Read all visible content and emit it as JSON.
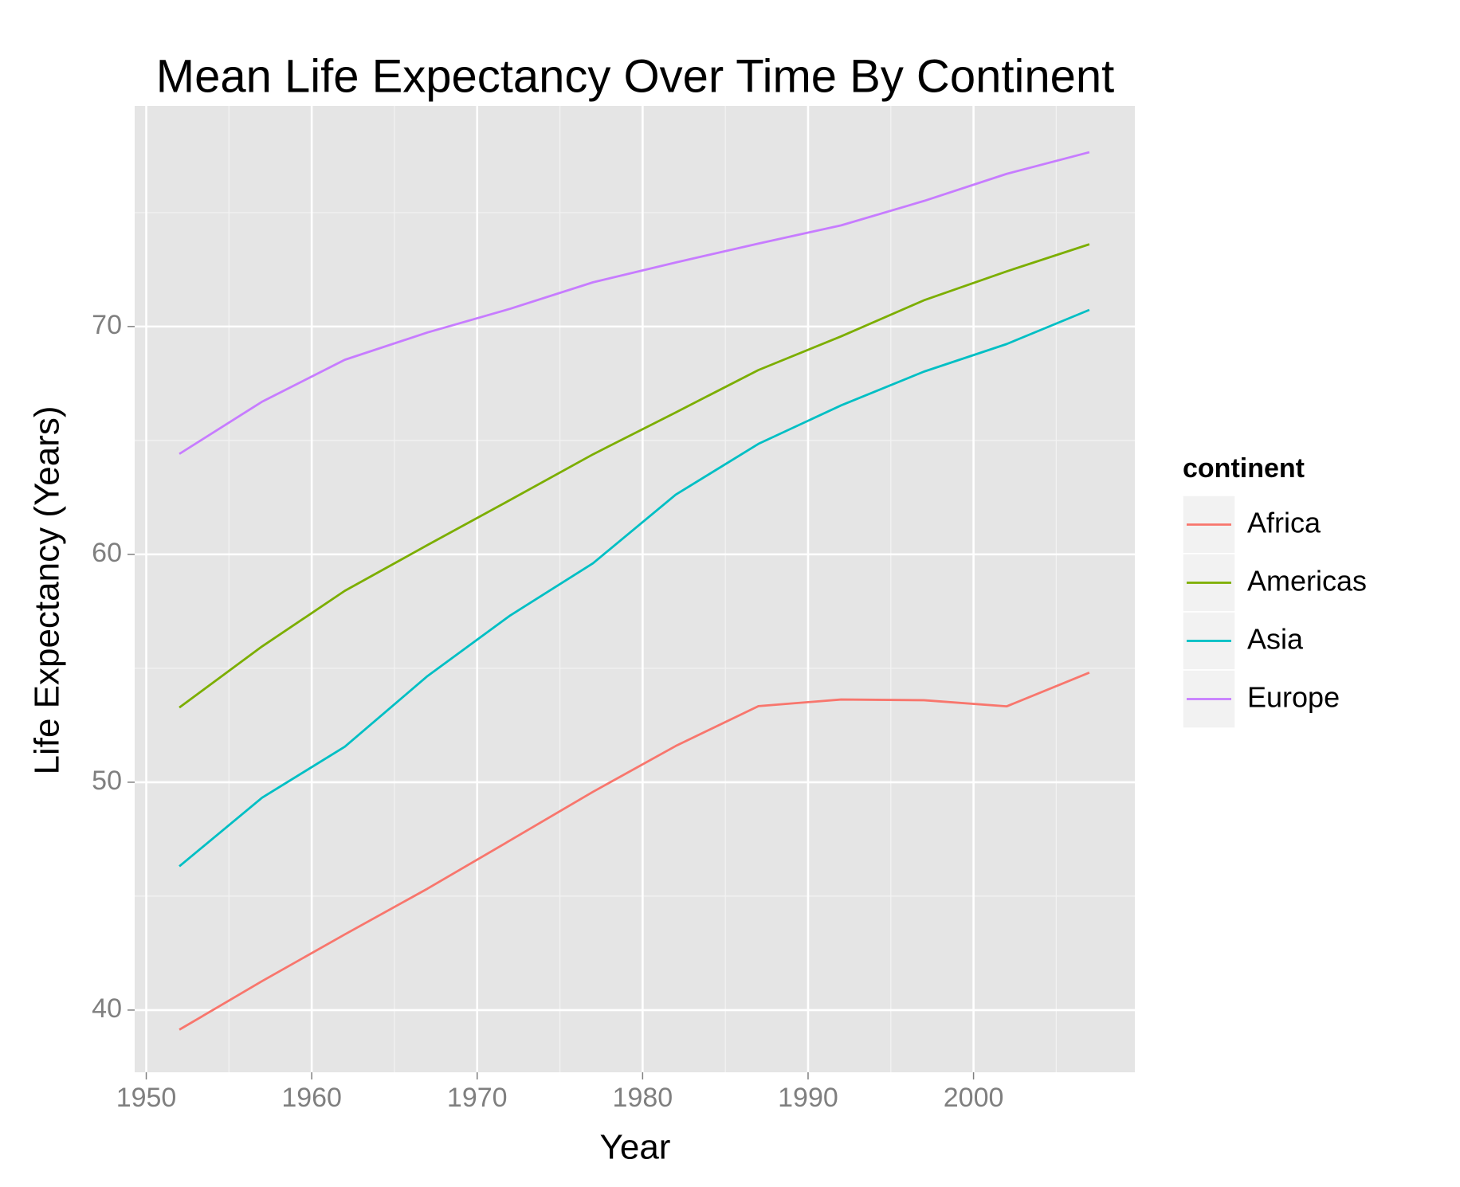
{
  "chart_data": {
    "type": "line",
    "title": "Mean Life Expectancy Over Time By Continent",
    "x_label": "Year",
    "y_label": "Life Expectancy (Years)",
    "legend_title": "continent",
    "legend_position": "right",
    "grid": true,
    "x": [
      1952,
      1957,
      1962,
      1967,
      1972,
      1977,
      1982,
      1987,
      1992,
      1997,
      2002,
      2007
    ],
    "series": [
      {
        "name": "Africa",
        "color": "#f8766d",
        "values": [
          39.14,
          41.27,
          43.32,
          45.33,
          47.45,
          49.58,
          51.59,
          53.34,
          53.63,
          53.6,
          53.33,
          54.81
        ]
      },
      {
        "name": "Americas",
        "color": "#7cae00",
        "values": [
          53.28,
          55.96,
          58.4,
          60.41,
          62.39,
          64.39,
          66.23,
          68.09,
          69.57,
          71.15,
          72.42,
          73.61
        ]
      },
      {
        "name": "Asia",
        "color": "#00bfc4",
        "values": [
          46.31,
          49.32,
          51.56,
          54.66,
          57.32,
          59.61,
          62.62,
          64.85,
          66.54,
          68.02,
          69.23,
          70.73
        ]
      },
      {
        "name": "Europe",
        "color": "#c77cff",
        "values": [
          64.41,
          66.7,
          68.54,
          69.74,
          70.78,
          71.94,
          72.81,
          73.64,
          74.44,
          75.51,
          76.7,
          77.65
        ]
      }
    ],
    "xlim": [
      1949.3,
      2009.75
    ],
    "xticks": [
      1950,
      1960,
      1970,
      1980,
      1990,
      2000
    ],
    "ylim": [
      37.27,
      79.68
    ],
    "yticks": [
      40,
      50,
      60,
      70
    ]
  }
}
